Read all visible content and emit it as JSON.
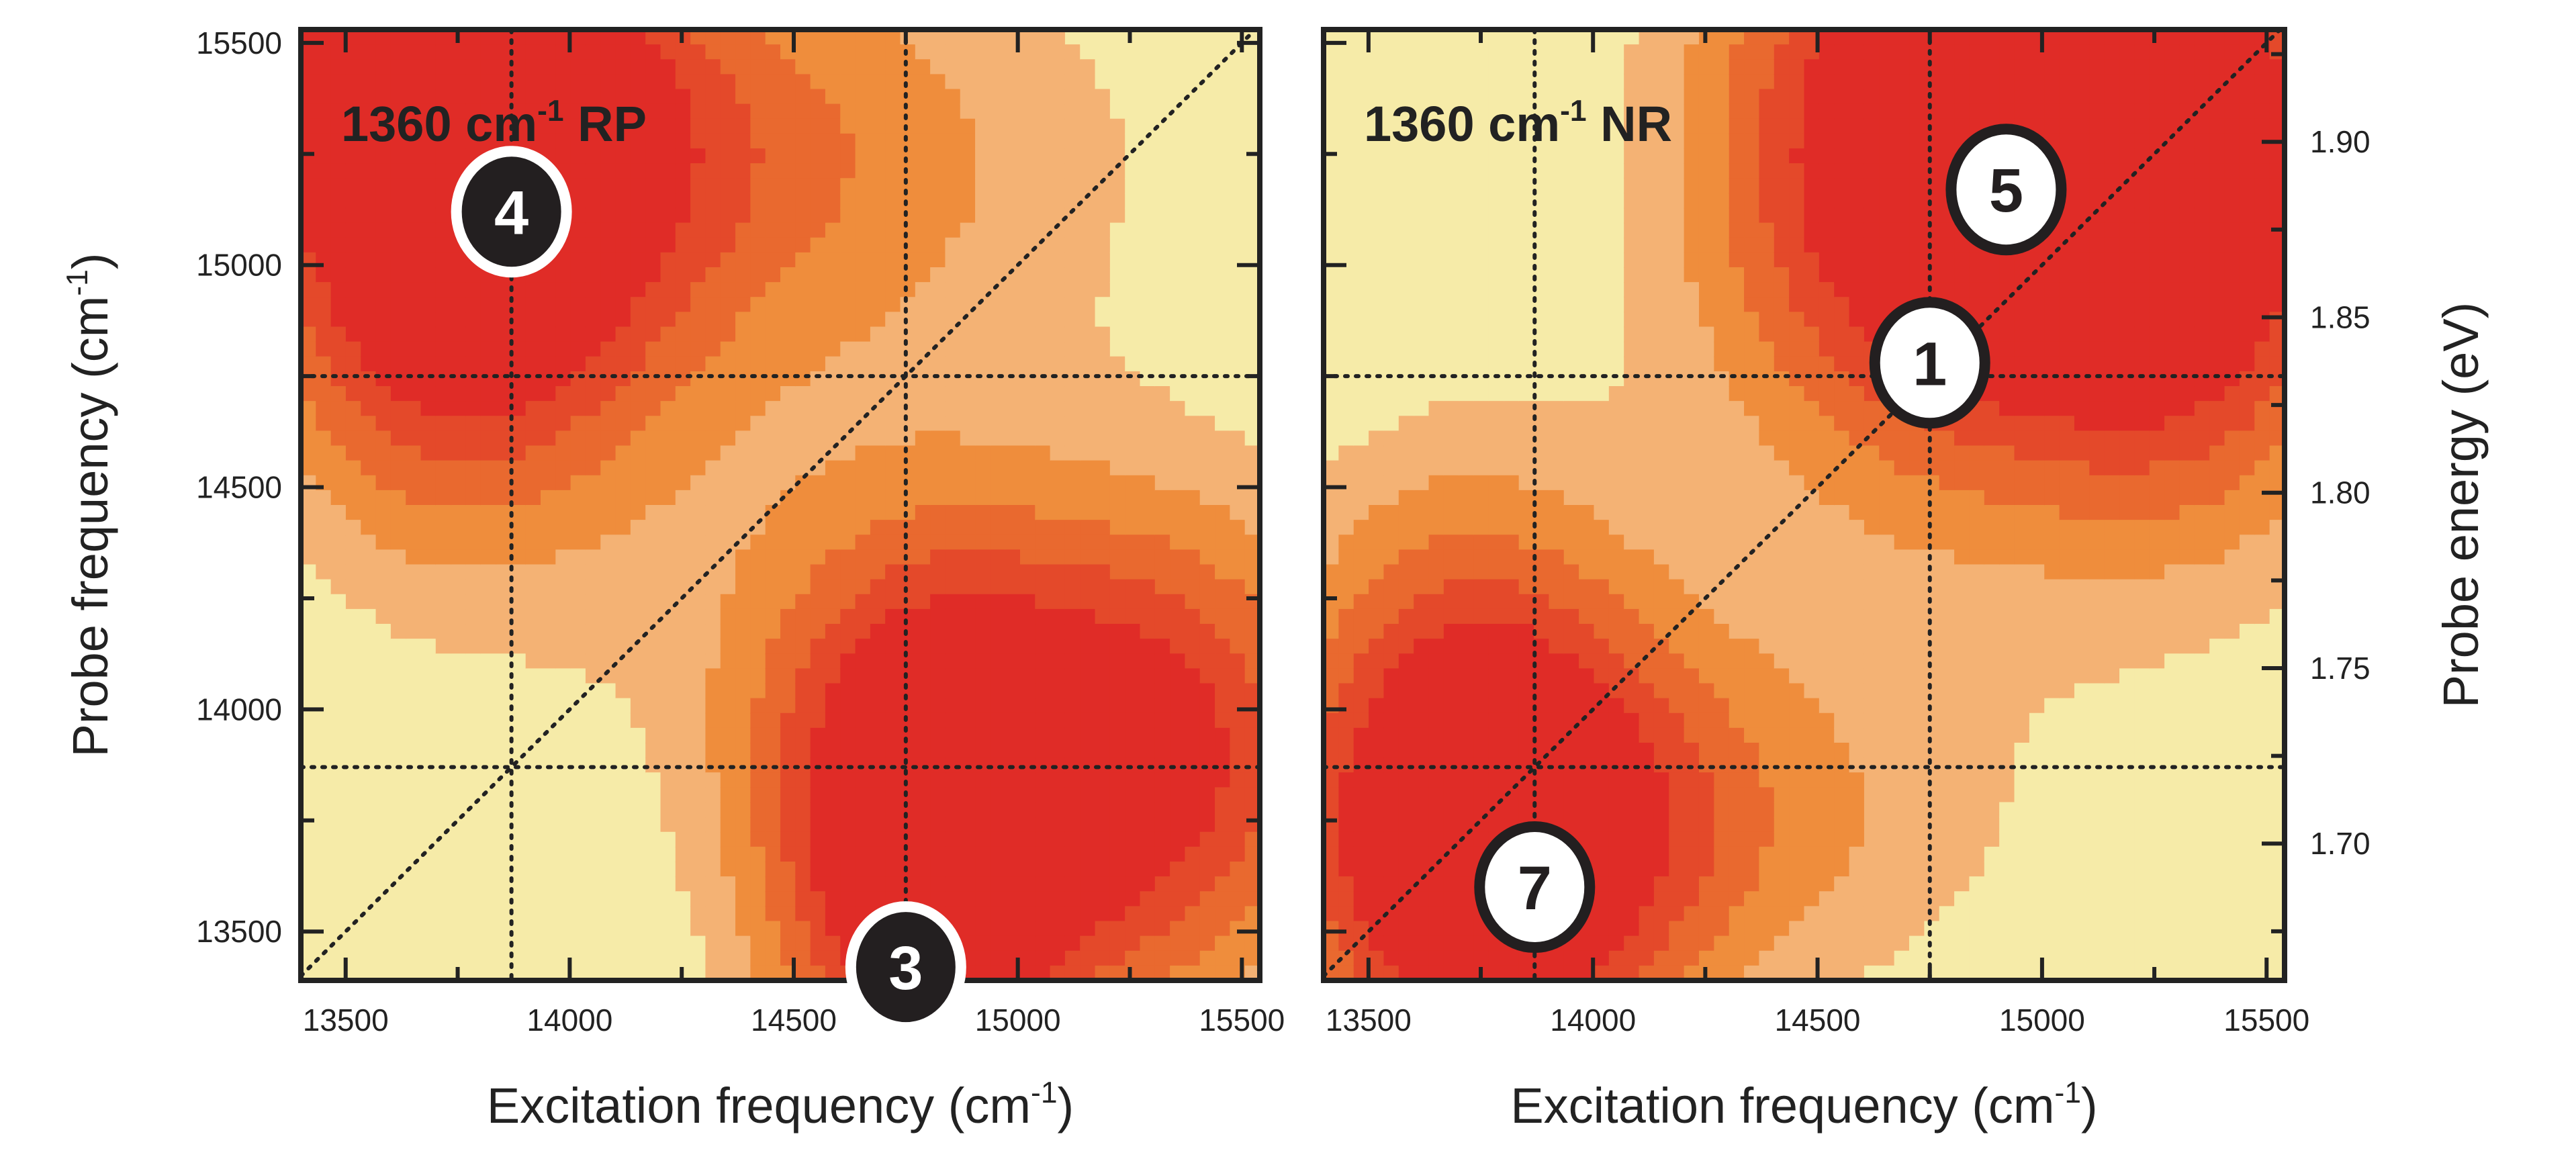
{
  "chart_data": [
    {
      "type": "heatmap",
      "title": "1360 cm-1 RP",
      "title_main": "1360 cm",
      "title_sup": "-1",
      "title_tail": " RP",
      "xlabel_main": "Excitation frequency (cm",
      "xlabel_sup": "-1",
      "xlabel_tail": ")",
      "ylabel_main": "Probe frequency (cm",
      "ylabel_sup": "-1",
      "ylabel_tail": ")",
      "xlim": [
        13400,
        15540
      ],
      "ylim": [
        13390,
        15530
      ],
      "xticks": [
        "13500",
        "14000",
        "14500",
        "15000",
        "15500"
      ],
      "yticks": [
        "13500",
        "14000",
        "14500",
        "15000",
        "15500"
      ],
      "guide_lines": {
        "vertical": [
          13870,
          14750
        ],
        "horizontal": [
          14750,
          13870
        ],
        "diagonal": true
      },
      "markers": [
        {
          "label": "4",
          "x": 13870,
          "y": 15120,
          "style": "black"
        },
        {
          "label": "3",
          "x": 14750,
          "y": 13420,
          "style": "black"
        }
      ],
      "peaks_approx": [
        {
          "x": 13750,
          "y": 15050,
          "amp": 1.0,
          "sx": 330,
          "sy": 480
        },
        {
          "x": 14300,
          "y": 15250,
          "amp": 0.55,
          "sx": 650,
          "sy": 380
        },
        {
          "x": 13600,
          "y": 15450,
          "amp": 0.5,
          "sx": 350,
          "sy": 200
        },
        {
          "x": 14800,
          "y": 13650,
          "amp": 1.1,
          "sx": 260,
          "sy": 420
        },
        {
          "x": 15350,
          "y": 13800,
          "amp": 0.6,
          "sx": 260,
          "sy": 380
        },
        {
          "x": 15000,
          "y": 14100,
          "amp": 0.45,
          "sx": 550,
          "sy": 380
        }
      ]
    },
    {
      "type": "heatmap",
      "title": "1360 cm-1 NR",
      "title_main": "1360 cm",
      "title_sup": "-1",
      "title_tail": " NR",
      "xlabel_main": "Excitation frequency (cm",
      "xlabel_sup": "-1",
      "xlabel_tail": ")",
      "y2label": "Probe energy (eV)",
      "xlim": [
        13400,
        15540
      ],
      "ylim": [
        13390,
        15530
      ],
      "y2lim": [
        1.661,
        1.932
      ],
      "xticks": [
        "13500",
        "14000",
        "14500",
        "15000",
        "15500"
      ],
      "y2ticks": [
        "1.70",
        "1.75",
        "1.80",
        "1.85",
        "1.90"
      ],
      "guide_lines": {
        "vertical": [
          13870,
          14750
        ],
        "horizontal": [
          14750,
          13870
        ],
        "diagonal": true
      },
      "markers": [
        {
          "label": "5",
          "x": 14920,
          "y": 15170,
          "style": "white"
        },
        {
          "label": "1",
          "x": 14750,
          "y": 14780,
          "style": "white"
        },
        {
          "label": "7",
          "x": 13870,
          "y": 13600,
          "style": "white"
        }
      ],
      "peaks_approx": [
        {
          "x": 14780,
          "y": 15250,
          "amp": 1.2,
          "sx": 380,
          "sy": 520
        },
        {
          "x": 15350,
          "y": 15150,
          "amp": 0.95,
          "sx": 300,
          "sy": 520
        },
        {
          "x": 13750,
          "y": 13650,
          "amp": 1.0,
          "sx": 300,
          "sy": 380
        },
        {
          "x": 14150,
          "y": 13750,
          "amp": 0.45,
          "sx": 550,
          "sy": 330
        },
        {
          "x": 13700,
          "y": 14250,
          "amp": 0.35,
          "sx": 300,
          "sy": 350
        }
      ]
    }
  ],
  "colors": {
    "levels": [
      "#F6EBA8",
      "#F4B274",
      "#EF8D3C",
      "#E9692F",
      "#E4492A",
      "#E02C27"
    ],
    "thresholds": [
      0.2,
      0.36,
      0.52,
      0.68,
      0.84
    ],
    "frame": "#222222"
  }
}
